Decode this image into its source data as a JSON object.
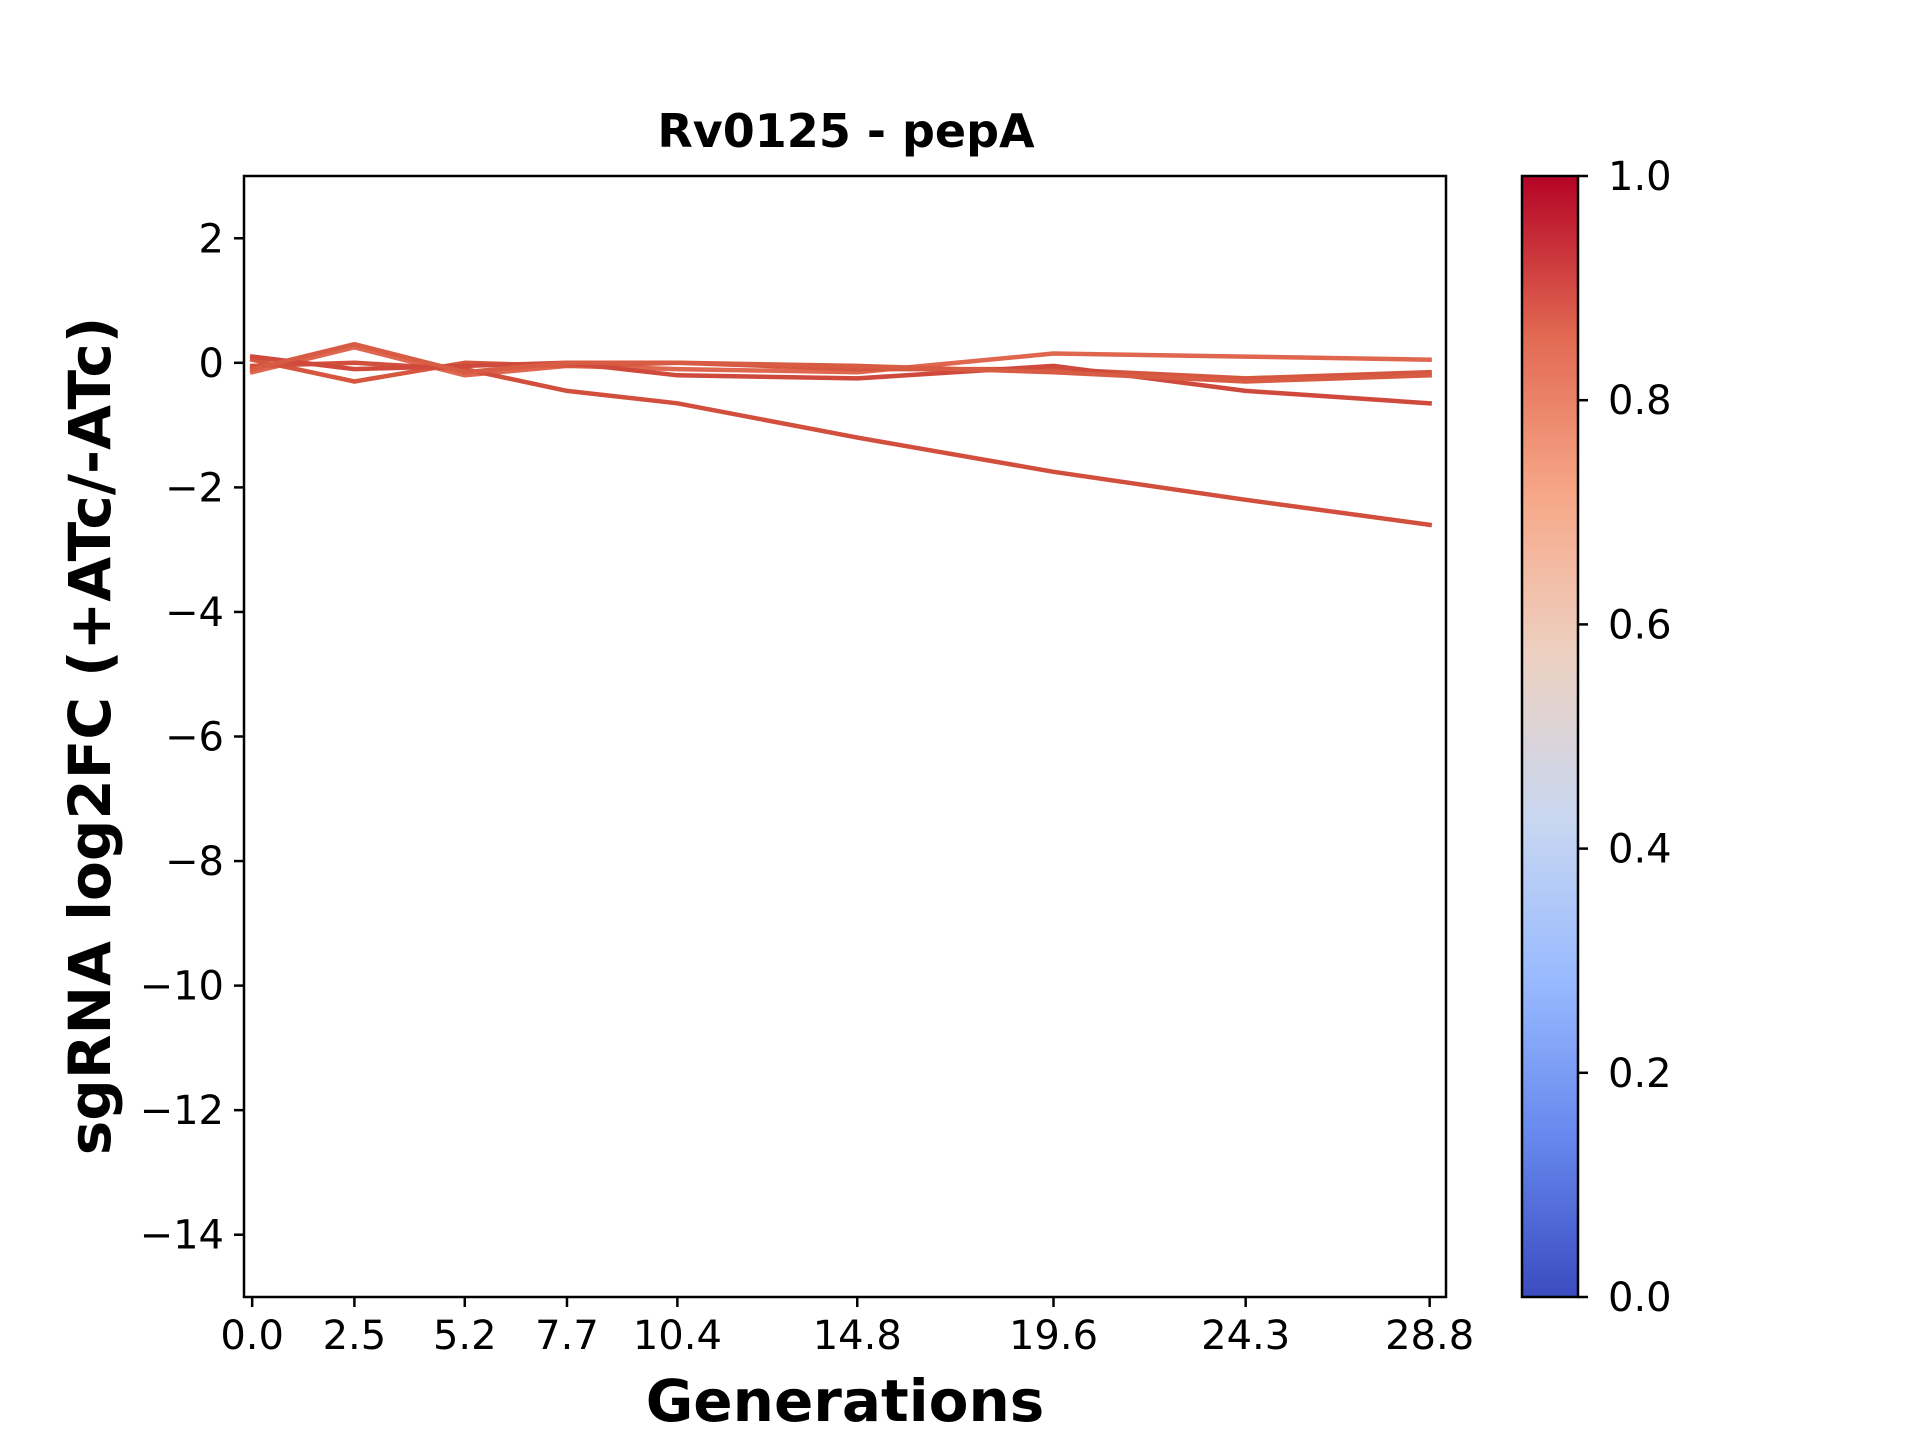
{
  "chart_data": {
    "type": "line",
    "title": "Rv0125 - pepA",
    "xlabel": "Generations",
    "ylabel": "sgRNA log2FC (+ATc/-ATc)",
    "x": [
      0.0,
      2.5,
      5.2,
      7.7,
      10.4,
      14.8,
      19.6,
      24.3,
      28.8
    ],
    "x_tick_labels": [
      "0.0",
      "2.5",
      "5.2",
      "7.7",
      "10.4",
      "14.8",
      "19.6",
      "24.3",
      "28.8"
    ],
    "xlim": [
      -0.2,
      29.2
    ],
    "ylim": [
      -15,
      3
    ],
    "y_ticks": [
      2,
      0,
      -2,
      -4,
      -6,
      -8,
      -10,
      -12,
      -14
    ],
    "y_tick_labels": [
      "2",
      "0",
      "−2",
      "−4",
      "−6",
      "−8",
      "−10",
      "−12",
      "−14"
    ],
    "grid": false,
    "series": [
      {
        "values": [
          -0.15,
          0.25,
          -0.2,
          -0.05,
          -0.1,
          -0.15,
          0.15,
          0.1,
          0.05
        ],
        "color_value": 0.82,
        "color": "#e0674f"
      },
      {
        "values": [
          0.05,
          -0.3,
          0.0,
          -0.05,
          0.0,
          -0.1,
          -0.1,
          -0.25,
          -0.15
        ],
        "color_value": 0.87,
        "color": "#d6573f"
      },
      {
        "values": [
          -0.05,
          0.0,
          -0.1,
          -0.45,
          -0.65,
          -1.2,
          -1.75,
          -2.2,
          -2.6
        ],
        "color_value": 0.89,
        "color": "#d24f3e"
      },
      {
        "values": [
          0.1,
          -0.1,
          -0.05,
          0.0,
          -0.2,
          -0.25,
          -0.05,
          -0.45,
          -0.65
        ],
        "color_value": 0.9,
        "color": "#cf4a3c"
      },
      {
        "values": [
          -0.1,
          0.3,
          -0.15,
          0.0,
          0.0,
          -0.05,
          -0.15,
          -0.3,
          -0.2
        ],
        "color_value": 0.86,
        "color": "#d85b43"
      }
    ],
    "colorbar": {
      "colormap": "coolwarm",
      "range": [
        0.0,
        1.0
      ],
      "ticks": [
        0.0,
        0.2,
        0.4,
        0.6,
        0.8,
        1.0
      ],
      "tick_labels": [
        "0.0",
        "0.2",
        "0.4",
        "0.6",
        "0.8",
        "1.0"
      ],
      "stops": [
        "#3b4cc0",
        "#6788ee",
        "#9abbff",
        "#c9d7f0",
        "#edd1c2",
        "#f7a889",
        "#e26952",
        "#b40426"
      ]
    }
  }
}
